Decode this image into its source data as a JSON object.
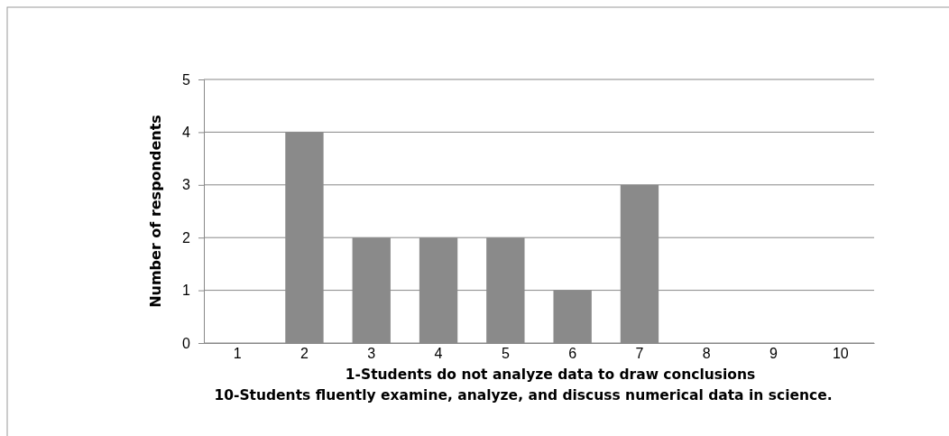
{
  "chart_data": {
    "type": "bar",
    "xlabel": "1-Students do not analyze data to draw conclusions\n10-Students fluently examine, analyze, and discuss numerical data in science.",
    "ylabel": "Number of respondents",
    "categories": [
      "1",
      "2",
      "3",
      "4",
      "5",
      "6",
      "7",
      "8",
      "9",
      "10"
    ],
    "values": [
      0,
      4,
      2,
      2,
      2,
      1,
      3,
      0,
      0,
      0
    ],
    "color": "#8a8a8a",
    "ylim": [
      0,
      5
    ],
    "yticks": [
      0,
      1,
      2,
      3,
      4,
      5
    ],
    "grid": "y"
  }
}
